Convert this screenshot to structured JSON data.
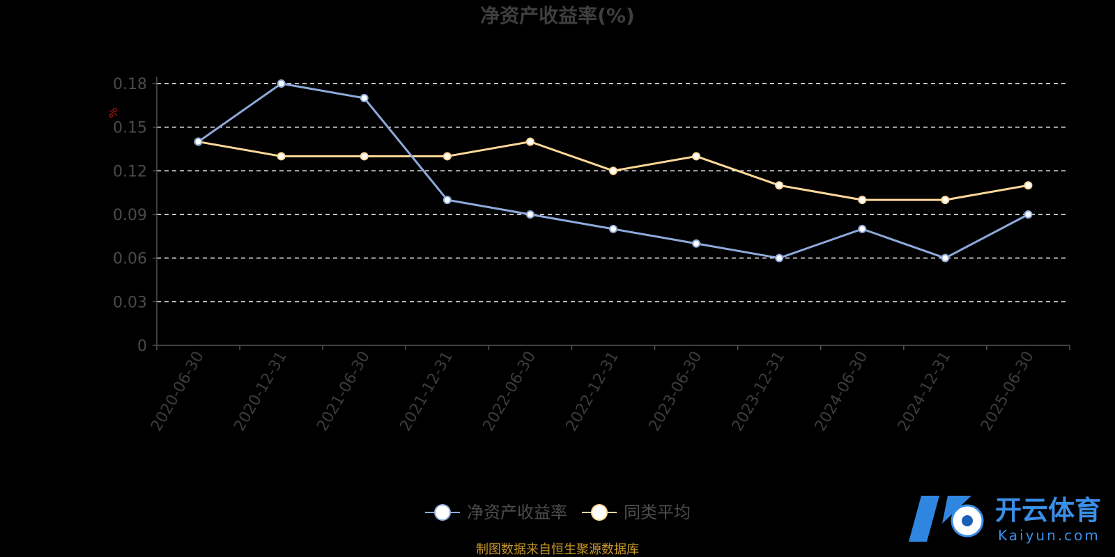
{
  "title": "净资产收益率(%)",
  "source_note": "制图数据来自恒生聚源数据库",
  "watermark": {
    "cn": "开云体育",
    "en": "Kaiyun.com"
  },
  "colors": {
    "background": "#000000",
    "series_1": "#8eaadb",
    "series_2": "#ffd898",
    "grid": "#ffffff",
    "axis": "#555555",
    "unit": "#b8140e",
    "source": "#c89628",
    "watermark": "#3a8fe8"
  },
  "chart_data": {
    "type": "line",
    "title": "净资产收益率(%)",
    "ylabel": "%",
    "xlabel": "",
    "ylim": [
      0,
      0.18
    ],
    "yticks": [
      "0",
      "0.03",
      "0.06",
      "0.09",
      "0.12",
      "0.15",
      "0.18"
    ],
    "grid": true,
    "legend_position": "bottom-center",
    "categories": [
      "2020-06-30",
      "2020-12-31",
      "2021-06-30",
      "2021-12-31",
      "2022-06-30",
      "2022-12-31",
      "2023-06-30",
      "2023-12-31",
      "2024-06-30",
      "2024-12-31",
      "2025-06-30"
    ],
    "series": [
      {
        "name": "净资产收益率",
        "values": [
          0.14,
          0.18,
          0.17,
          0.1,
          0.09,
          0.08,
          0.07,
          0.06,
          0.08,
          0.06,
          0.09
        ]
      },
      {
        "name": "同类平均",
        "values": [
          0.14,
          0.13,
          0.13,
          0.13,
          0.14,
          0.12,
          0.13,
          0.11,
          0.1,
          0.1,
          0.11
        ]
      }
    ]
  }
}
